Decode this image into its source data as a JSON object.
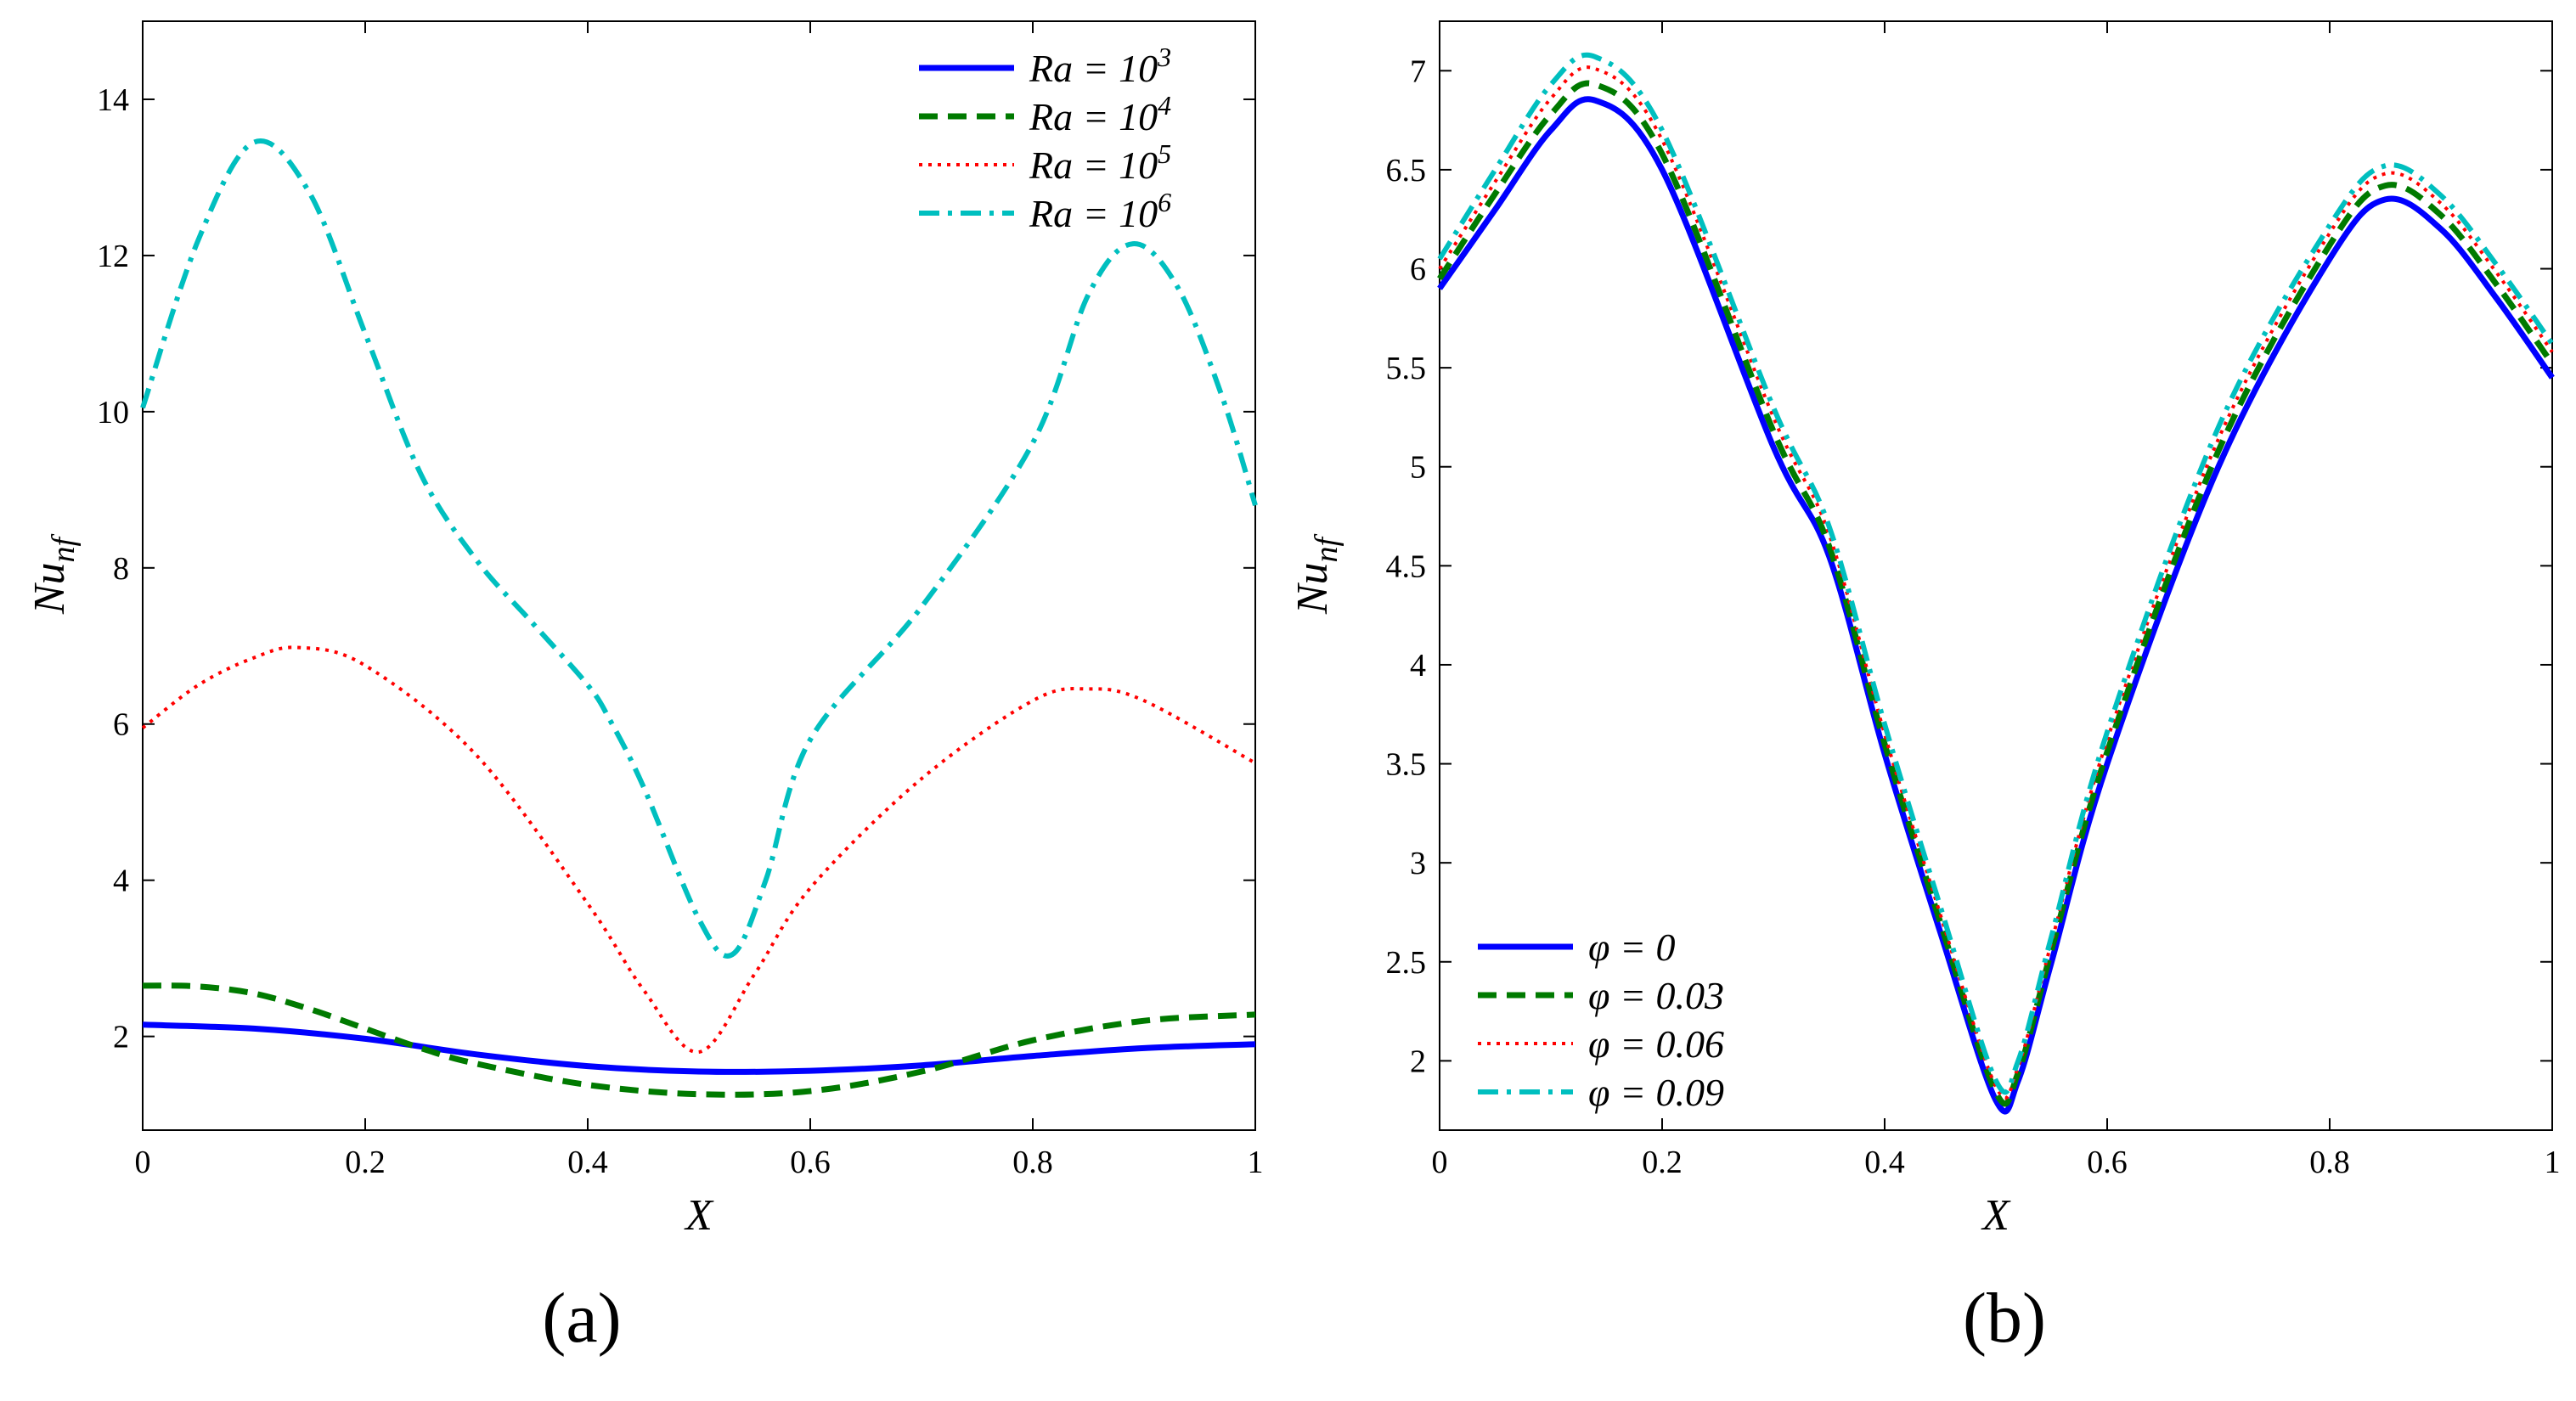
{
  "colors": {
    "blue": "#0000ff",
    "green": "#007a00",
    "red": "#ff0000",
    "cyan": "#00bfbf"
  },
  "chart_data": [
    {
      "type": "line",
      "panel_label": "(a)",
      "xlabel": "X",
      "ylabel": "Nu_nf",
      "xlim": [
        0,
        1
      ],
      "ylim": [
        0.8,
        15
      ],
      "xticks": [
        0,
        0.2,
        0.4,
        0.6,
        0.8,
        1
      ],
      "xtick_labels": [
        "0",
        "0.2",
        "0.4",
        "0.6",
        "0.8",
        "1"
      ],
      "yticks": [
        2,
        4,
        6,
        8,
        10,
        12,
        14
      ],
      "ytick_labels": [
        "2",
        "4",
        "6",
        "8",
        "10",
        "12",
        "14"
      ],
      "legend_position": "top-right",
      "series": [
        {
          "name": "Ra = 10^3",
          "label_main": "Ra = 10",
          "label_sup": "3",
          "color": "#0000ff",
          "dash": "solid",
          "points": [
            [
              0,
              2.15
            ],
            [
              0.1,
              2.1
            ],
            [
              0.2,
              1.97
            ],
            [
              0.3,
              1.77
            ],
            [
              0.4,
              1.62
            ],
            [
              0.5,
              1.55
            ],
            [
              0.6,
              1.56
            ],
            [
              0.7,
              1.63
            ],
            [
              0.8,
              1.75
            ],
            [
              0.9,
              1.85
            ],
            [
              1,
              1.9
            ]
          ]
        },
        {
          "name": "Ra = 10^4",
          "label_main": "Ra = 10",
          "label_sup": "4",
          "color": "#007a00",
          "dash": "dashed",
          "points": [
            [
              0,
              2.65
            ],
            [
              0.05,
              2.64
            ],
            [
              0.1,
              2.55
            ],
            [
              0.15,
              2.35
            ],
            [
              0.2,
              2.1
            ],
            [
              0.25,
              1.85
            ],
            [
              0.3,
              1.65
            ],
            [
              0.4,
              1.38
            ],
            [
              0.5,
              1.26
            ],
            [
              0.6,
              1.3
            ],
            [
              0.7,
              1.55
            ],
            [
              0.8,
              1.95
            ],
            [
              0.9,
              2.2
            ],
            [
              1,
              2.28
            ]
          ]
        },
        {
          "name": "Ra = 10^5",
          "label_main": "Ra = 10",
          "label_sup": "5",
          "color": "#ff0000",
          "dash": "dotted",
          "points": [
            [
              0,
              5.95
            ],
            [
              0.05,
              6.5
            ],
            [
              0.1,
              6.85
            ],
            [
              0.14,
              6.98
            ],
            [
              0.2,
              6.75
            ],
            [
              0.3,
              5.6
            ],
            [
              0.4,
              3.7
            ],
            [
              0.45,
              2.6
            ],
            [
              0.5,
              1.8
            ],
            [
              0.55,
              2.8
            ],
            [
              0.6,
              3.9
            ],
            [
              0.7,
              5.3
            ],
            [
              0.8,
              6.3
            ],
            [
              0.85,
              6.45
            ],
            [
              0.9,
              6.3
            ],
            [
              1,
              5.5
            ]
          ]
        },
        {
          "name": "Ra = 10^6",
          "label_main": "Ra = 10",
          "label_sup": "6",
          "color": "#00bfbf",
          "dash": "dashdot",
          "points": [
            [
              0,
              10.05
            ],
            [
              0.05,
              12.2
            ],
            [
              0.1,
              13.45
            ],
            [
              0.15,
              12.8
            ],
            [
              0.2,
              11.0
            ],
            [
              0.25,
              9.2
            ],
            [
              0.3,
              8.1
            ],
            [
              0.35,
              7.3
            ],
            [
              0.4,
              6.5
            ],
            [
              0.42,
              6.05
            ],
            [
              0.45,
              5.2
            ],
            [
              0.5,
              3.5
            ],
            [
              0.53,
              3.05
            ],
            [
              0.56,
              4.0
            ],
            [
              0.6,
              5.8
            ],
            [
              0.7,
              7.5
            ],
            [
              0.8,
              9.6
            ],
            [
              0.85,
              11.5
            ],
            [
              0.89,
              12.15
            ],
            [
              0.93,
              11.6
            ],
            [
              0.97,
              10.2
            ],
            [
              1,
              8.8
            ]
          ]
        }
      ]
    },
    {
      "type": "line",
      "panel_label": "(b)",
      "xlabel": "X",
      "ylabel": "Nu_nf",
      "xlim": [
        0,
        1
      ],
      "ylim": [
        1.65,
        7.25
      ],
      "xticks": [
        0,
        0.2,
        0.4,
        0.6,
        0.8,
        1
      ],
      "xtick_labels": [
        "0",
        "0.2",
        "0.4",
        "0.6",
        "0.8",
        "1"
      ],
      "yticks": [
        2,
        2.5,
        3,
        3.5,
        4,
        4.5,
        5,
        5.5,
        6,
        6.5,
        7
      ],
      "ytick_labels": [
        "2",
        "2.5",
        "3",
        "3.5",
        "4",
        "4.5",
        "5",
        "5.5",
        "6",
        "6.5",
        "7"
      ],
      "legend_position": "bottom-left",
      "series": [
        {
          "name": "φ = 0",
          "label_main": "φ = 0",
          "label_sup": "",
          "color": "#0000ff",
          "dash": "solid",
          "points": [
            [
              0,
              5.9
            ],
            [
              0.05,
              6.3
            ],
            [
              0.1,
              6.7
            ],
            [
              0.14,
              6.85
            ],
            [
              0.2,
              6.5
            ],
            [
              0.3,
              5.1
            ],
            [
              0.35,
              4.55
            ],
            [
              0.4,
              3.55
            ],
            [
              0.45,
              2.65
            ],
            [
              0.5,
              1.8
            ],
            [
              0.52,
              1.9
            ],
            [
              0.55,
              2.5
            ],
            [
              0.6,
              3.5
            ],
            [
              0.7,
              5.0
            ],
            [
              0.8,
              6.05
            ],
            [
              0.85,
              6.35
            ],
            [
              0.9,
              6.2
            ],
            [
              0.95,
              5.85
            ],
            [
              1,
              5.45
            ]
          ]
        },
        {
          "name": "φ = 0.03",
          "label_main": "φ = 0.03",
          "label_sup": "",
          "color": "#007a00",
          "dash": "dashed",
          "points": [
            [
              0,
              5.95
            ],
            [
              0.05,
              6.38
            ],
            [
              0.1,
              6.78
            ],
            [
              0.14,
              6.93
            ],
            [
              0.2,
              6.58
            ],
            [
              0.3,
              5.18
            ],
            [
              0.35,
              4.6
            ],
            [
              0.4,
              3.6
            ],
            [
              0.45,
              2.7
            ],
            [
              0.5,
              1.84
            ],
            [
              0.52,
              1.94
            ],
            [
              0.55,
              2.56
            ],
            [
              0.6,
              3.56
            ],
            [
              0.7,
              5.08
            ],
            [
              0.8,
              6.12
            ],
            [
              0.85,
              6.42
            ],
            [
              0.9,
              6.27
            ],
            [
              0.95,
              5.92
            ],
            [
              1,
              5.52
            ]
          ]
        },
        {
          "name": "φ = 0.06",
          "label_main": "φ = 0.06",
          "label_sup": "",
          "color": "#ff0000",
          "dash": "dotted",
          "points": [
            [
              0,
              6.0
            ],
            [
              0.05,
              6.44
            ],
            [
              0.1,
              6.86
            ],
            [
              0.14,
              7.01
            ],
            [
              0.2,
              6.65
            ],
            [
              0.3,
              5.25
            ],
            [
              0.35,
              4.66
            ],
            [
              0.4,
              3.65
            ],
            [
              0.45,
              2.74
            ],
            [
              0.5,
              1.87
            ],
            [
              0.52,
              1.97
            ],
            [
              0.55,
              2.6
            ],
            [
              0.6,
              3.62
            ],
            [
              0.7,
              5.14
            ],
            [
              0.8,
              6.18
            ],
            [
              0.85,
              6.48
            ],
            [
              0.9,
              6.33
            ],
            [
              0.95,
              5.98
            ],
            [
              1,
              5.58
            ]
          ]
        },
        {
          "name": "φ = 0.09",
          "label_main": "φ = 0.09",
          "label_sup": "",
          "color": "#00bfbf",
          "dash": "dashdot",
          "points": [
            [
              0,
              6.05
            ],
            [
              0.05,
              6.5
            ],
            [
              0.1,
              6.93
            ],
            [
              0.14,
              7.07
            ],
            [
              0.2,
              6.7
            ],
            [
              0.3,
              5.3
            ],
            [
              0.35,
              4.7
            ],
            [
              0.4,
              3.7
            ],
            [
              0.45,
              2.78
            ],
            [
              0.5,
              1.9
            ],
            [
              0.52,
              2.0
            ],
            [
              0.55,
              2.63
            ],
            [
              0.6,
              3.66
            ],
            [
              0.7,
              5.2
            ],
            [
              0.8,
              6.22
            ],
            [
              0.85,
              6.52
            ],
            [
              0.9,
              6.37
            ],
            [
              0.95,
              6.02
            ],
            [
              1,
              5.62
            ]
          ]
        }
      ]
    }
  ]
}
